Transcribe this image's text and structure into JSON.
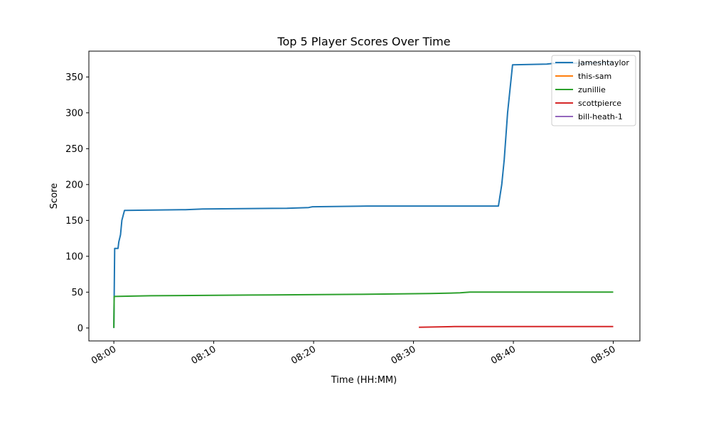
{
  "chart_data": {
    "type": "line",
    "title": "Top 5 Player Scores Over Time",
    "xlabel": "Time (HH:MM)",
    "ylabel": "Score",
    "xlim": [
      "07:57:30",
      "08:52:40"
    ],
    "ylim": [
      -18,
      386
    ],
    "xticks": [
      "08:00",
      "08:10",
      "08:20",
      "08:30",
      "08:40",
      "08:50"
    ],
    "yticks": [
      0,
      50,
      100,
      150,
      200,
      250,
      300,
      350
    ],
    "grid": false,
    "legend_position": "top-right",
    "series": [
      {
        "name": "jameshtaylor",
        "color": "#1f77b4",
        "step": true,
        "points": [
          [
            "08:00:00",
            0
          ],
          [
            "08:00:05",
            111
          ],
          [
            "08:00:25",
            111
          ],
          [
            "08:00:30",
            120
          ],
          [
            "08:00:40",
            130
          ],
          [
            "08:00:48",
            150
          ],
          [
            "08:01:04",
            164
          ],
          [
            "08:07:10",
            165
          ],
          [
            "08:08:53",
            166
          ],
          [
            "08:17:20",
            167
          ],
          [
            "08:19:30",
            168
          ],
          [
            "08:19:53",
            169
          ],
          [
            "08:25:22",
            170
          ],
          [
            "08:38:30",
            170
          ],
          [
            "08:38:50",
            200
          ],
          [
            "08:39:05",
            235
          ],
          [
            "08:39:25",
            300
          ],
          [
            "08:39:55",
            367
          ],
          [
            "08:43:20",
            368
          ],
          [
            "08:44:00",
            369
          ],
          [
            "08:50:00",
            370
          ]
        ]
      },
      {
        "name": "this-sam",
        "color": "#ff7f0e",
        "step": true,
        "points": []
      },
      {
        "name": "zunillie",
        "color": "#2ca02c",
        "step": true,
        "points": [
          [
            "08:00:00",
            0
          ],
          [
            "08:00:02",
            44
          ],
          [
            "08:03:42",
            45
          ],
          [
            "08:13:42",
            46
          ],
          [
            "08:24:26",
            47
          ],
          [
            "08:31:40",
            48
          ],
          [
            "08:34:40",
            49
          ],
          [
            "08:35:39",
            50
          ],
          [
            "08:50:00",
            50
          ]
        ]
      },
      {
        "name": "scottpierce",
        "color": "#d62728",
        "step": true,
        "points": [
          [
            "08:30:32",
            1
          ],
          [
            "08:34:05",
            2
          ],
          [
            "08:50:00",
            2
          ]
        ]
      },
      {
        "name": "bill-heath-1",
        "color": "#9467bd",
        "step": true,
        "points": []
      }
    ]
  }
}
